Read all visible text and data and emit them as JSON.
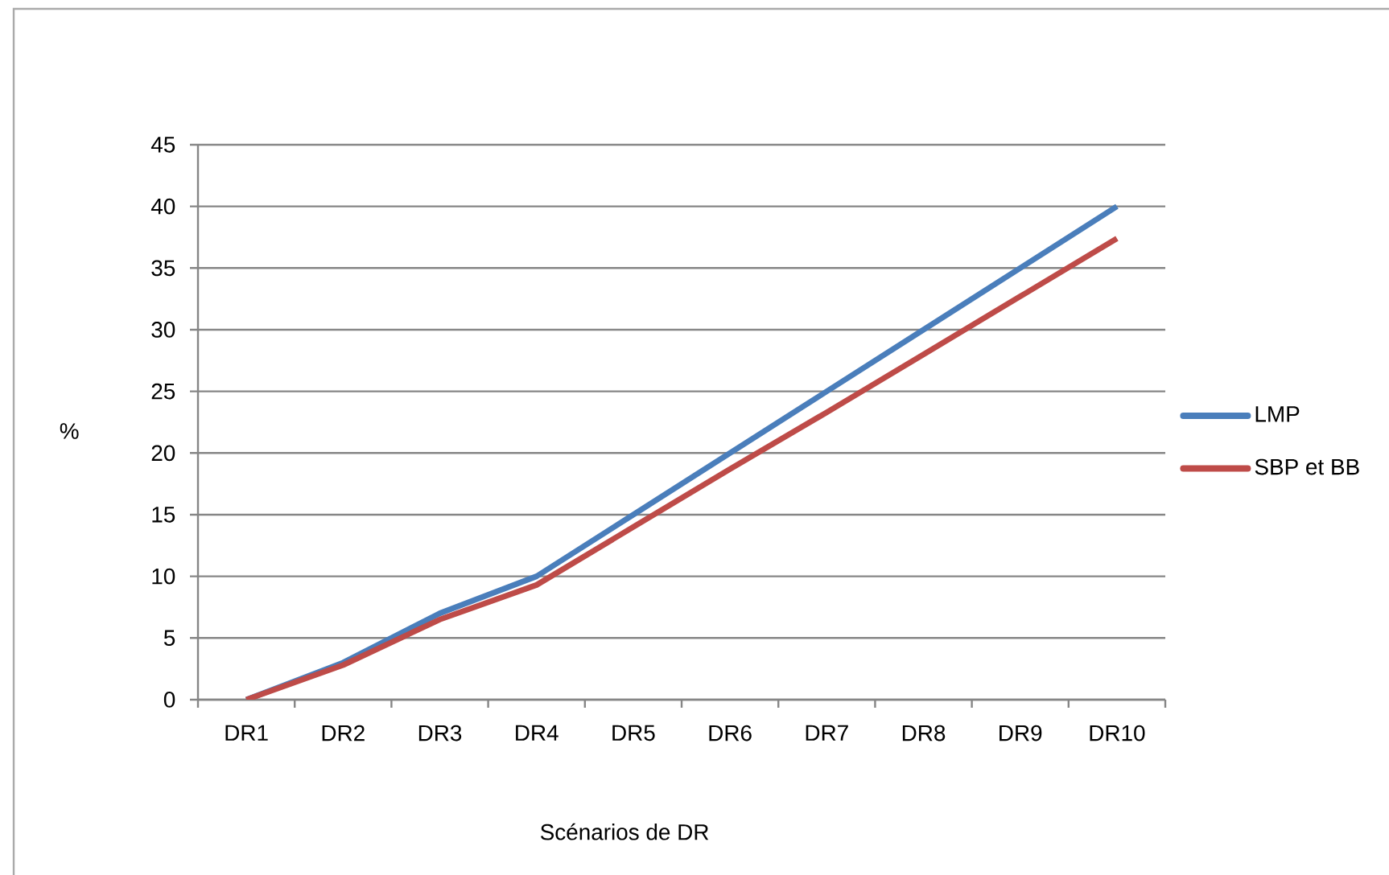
{
  "chart_data": {
    "type": "line",
    "xlabel": "Scénarios de DR",
    "ylabel": "%",
    "categories": [
      "DR1",
      "DR2",
      "DR3",
      "DR4",
      "DR5",
      "DR6",
      "DR7",
      "DR8",
      "DR9",
      "DR10"
    ],
    "series": [
      {
        "name": "LMP",
        "color": "#4a7ebb",
        "values": [
          0,
          3,
          7,
          10,
          15,
          20,
          25,
          30,
          35,
          40
        ]
      },
      {
        "name": "SBP et BB",
        "color": "#be4b48",
        "values": [
          0,
          2.8,
          6.5,
          9.3,
          14,
          18.7,
          23.3,
          28,
          32.7,
          37.4
        ]
      }
    ],
    "ylim": [
      0,
      45
    ],
    "yticks": [
      0,
      5,
      10,
      15,
      20,
      25,
      30,
      35,
      40,
      45
    ],
    "grid": "y",
    "legend": "right",
    "marker": "none",
    "line_style": "solid"
  }
}
